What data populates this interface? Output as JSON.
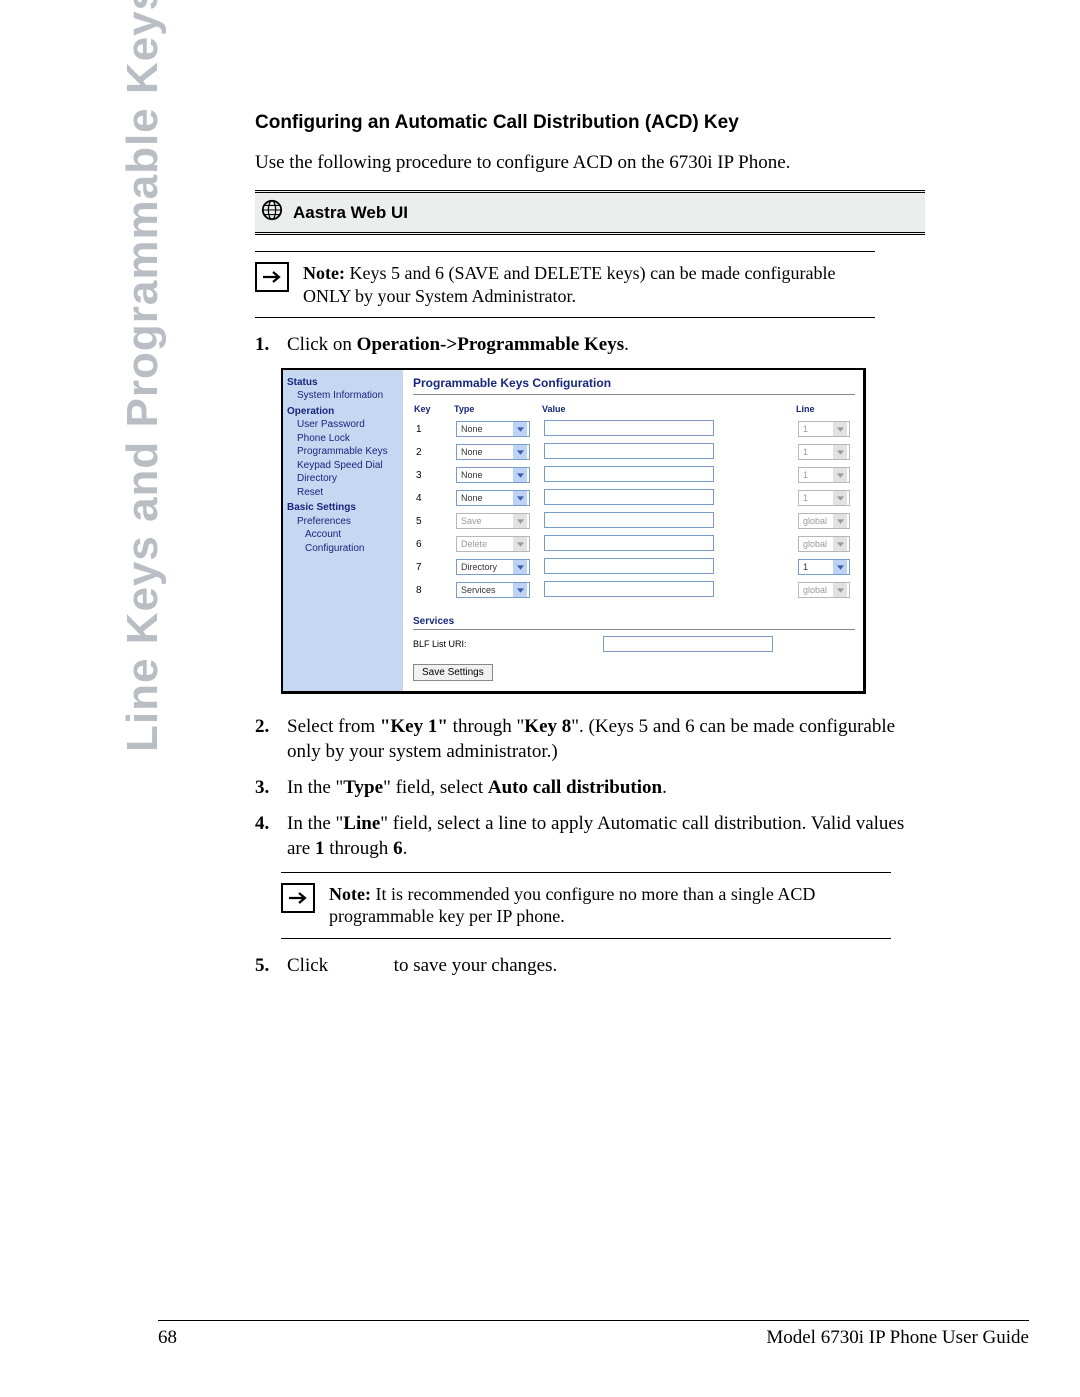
{
  "side_label": "Line Keys and Programmable Keys",
  "section_title": "Configuring an Automatic Call Distribution (ACD) Key",
  "intro": "Use the following procedure to configure ACD on the 6730i IP Phone.",
  "aastra_bar": "Aastra Web UI",
  "note1": {
    "label": "Note:",
    "text": " Keys 5 and 6 (SAVE and DELETE keys) can be made configurable ONLY by your System Administrator."
  },
  "step1": {
    "num": "1.",
    "pre": "Click on ",
    "bold": "Operation->Programmable Keys",
    "post": "."
  },
  "shot": {
    "title": "Programmable Keys Configuration",
    "sidebar": {
      "h1": "Status",
      "i1": "System Information",
      "h2": "Operation",
      "i2a": "User Password",
      "i2b": "Phone Lock",
      "i2c": "Programmable Keys",
      "i2d": "Keypad Speed Dial",
      "i2e": "Directory",
      "i2f": "Reset",
      "h3": "Basic Settings",
      "i3a": "Preferences",
      "i3b": "Account Configuration"
    },
    "headers": {
      "key": "Key",
      "type": "Type",
      "value": "Value",
      "line": "Line"
    },
    "rows": [
      {
        "key": "1",
        "type": "None",
        "dim": false,
        "line": "1",
        "lineDim": true
      },
      {
        "key": "2",
        "type": "None",
        "dim": false,
        "line": "1",
        "lineDim": true
      },
      {
        "key": "3",
        "type": "None",
        "dim": false,
        "line": "1",
        "lineDim": true
      },
      {
        "key": "4",
        "type": "None",
        "dim": false,
        "line": "1",
        "lineDim": true
      },
      {
        "key": "5",
        "type": "Save",
        "dim": true,
        "line": "global",
        "lineDim": true
      },
      {
        "key": "6",
        "type": "Delete",
        "dim": true,
        "line": "global",
        "lineDim": true
      },
      {
        "key": "7",
        "type": "Directory",
        "dim": false,
        "line": "1",
        "lineDim": false
      },
      {
        "key": "8",
        "type": "Services",
        "dim": false,
        "line": "global",
        "lineDim": true
      }
    ],
    "services_header": "Services",
    "blf_label": "BLF List URI:",
    "save_btn": "Save Settings"
  },
  "step2": {
    "num": "2.",
    "t1": "Select from ",
    "b1": "\"Key 1\"",
    "t2": " through \"",
    "b2": "Key 8",
    "t3": "\". (Keys 5 and 6 can be made configurable only by your system administrator.)"
  },
  "step3": {
    "num": "3.",
    "t1": "In the \"",
    "b1": "Type",
    "t2": "\" field, select ",
    "b2": "Auto call distribution",
    "t3": "."
  },
  "step4": {
    "num": "4.",
    "t1": "In the \"",
    "b1": "Line",
    "t2": "\" field, select a line to apply Automatic call distribution. Valid values are ",
    "b2": "1",
    "t3": " through ",
    "b3": "6",
    "t4": "."
  },
  "note2": {
    "label": "Note:",
    "text": " It is recommended you configure no more than a single ACD programmable key per IP phone."
  },
  "step5": {
    "num": "5.",
    "t1": "Click",
    "t2": "to save your changes."
  },
  "footer": {
    "page": "68",
    "title": "Model 6730i IP Phone User Guide"
  }
}
